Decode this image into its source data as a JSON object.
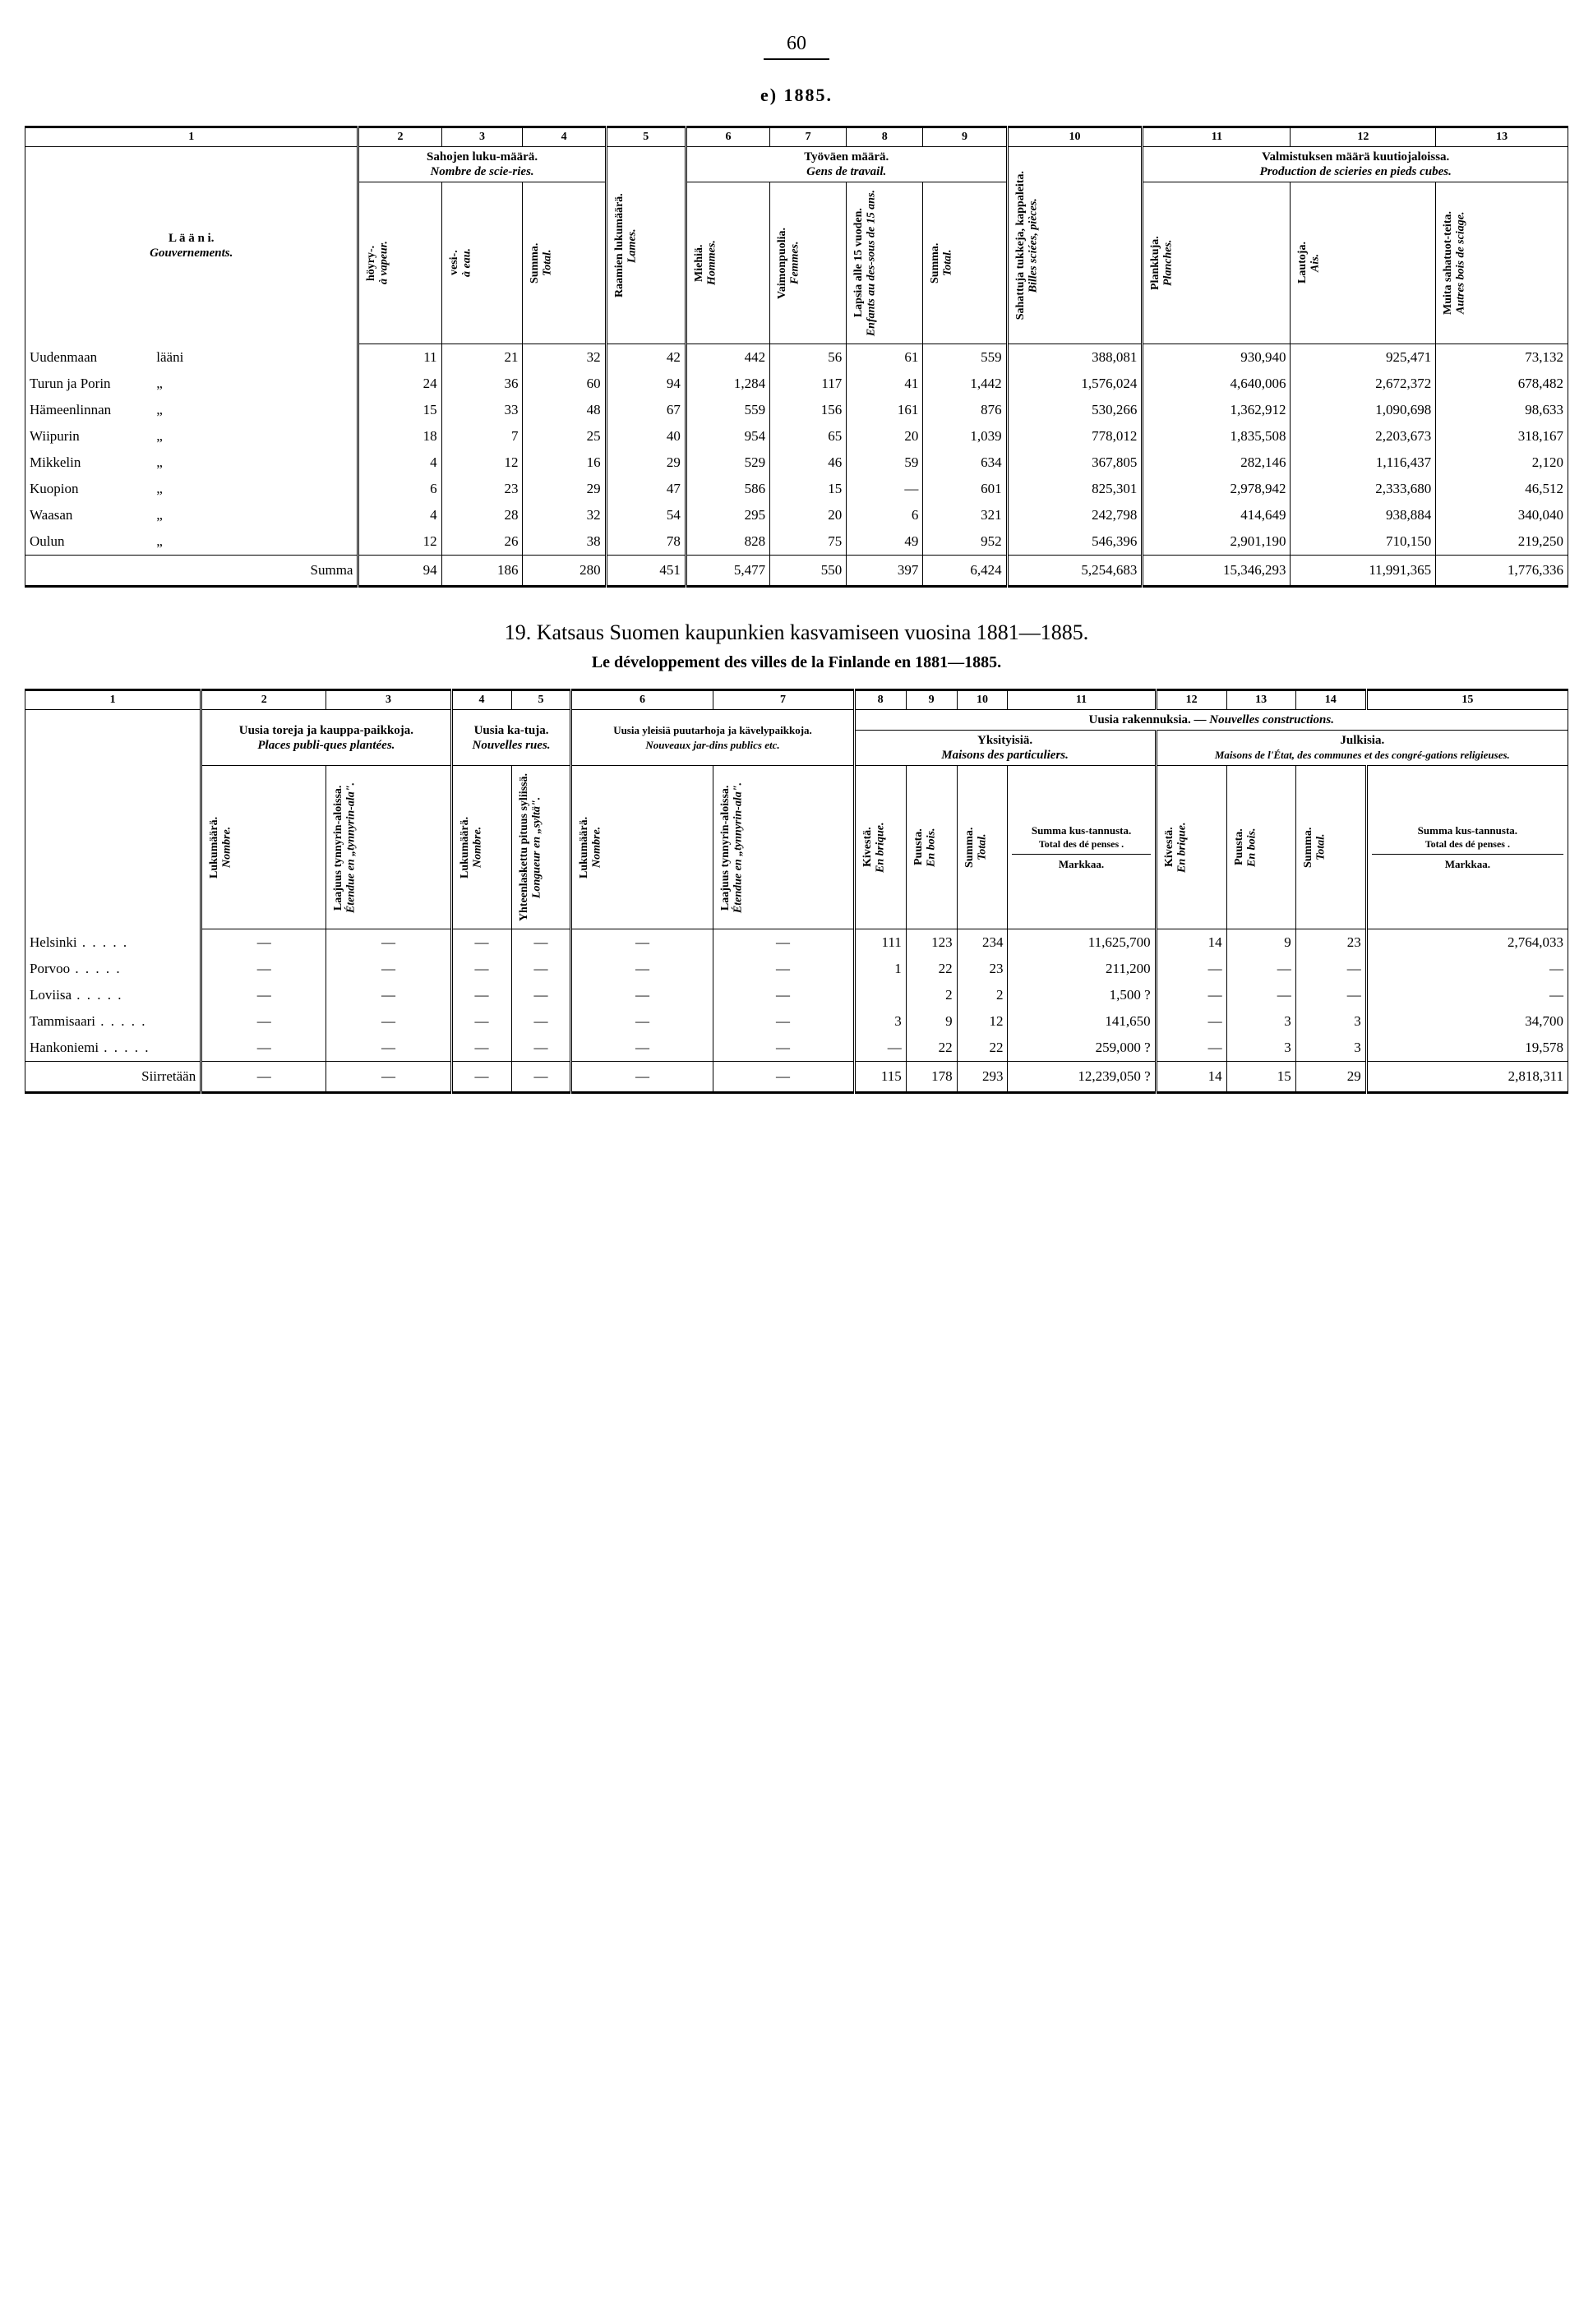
{
  "page_number": "60",
  "section_e_label": "e)  1885.",
  "table1": {
    "colnums": [
      "1",
      "2",
      "3",
      "4",
      "5",
      "6",
      "7",
      "8",
      "9",
      "10",
      "11",
      "12",
      "13"
    ],
    "hdr_sahojen": "Sahojen luku-määrä.",
    "hdr_sahojen_fr": "Nombre de scie-ries.",
    "hdr_raamien": "Raamien lukumäärä.",
    "hdr_raamien_fr": "Lames.",
    "hdr_tyovaen": "Työväen määrä.",
    "hdr_tyovaen_fr": "Gens de travail.",
    "hdr_tukkeja": "Sahattuja tukkeja, kappaleita.",
    "hdr_tukkeja_fr": "Billes sciées, pièces.",
    "hdr_valm": "Valmistuksen määrä kuutiojaloissa.",
    "hdr_valm_fr": "Production de scieries en pieds cubes.",
    "hdr_laani": "L ä ä n i.",
    "hdr_laani_fr": "Gouvernements.",
    "sub_hoyry": "höyry-.",
    "sub_hoyry_fr": "à vapeur.",
    "sub_vesi": "vesi-.",
    "sub_vesi_fr": "à eau.",
    "sub_summa": "Summa.",
    "sub_total": "Total.",
    "sub_miehia": "Miehiä.",
    "sub_miehia_fr": "Hommes.",
    "sub_vaimo": "Vaimonpuolia.",
    "sub_vaimo_fr": "Femmes.",
    "sub_lapsia": "Lapsia alle 15 vuoden.",
    "sub_lapsia_fr": "Enfants au des-sous de 15 ans.",
    "sub_plank": "Plankkuja.",
    "sub_plank_fr": "Planches.",
    "sub_lautoja": "Lautoja.",
    "sub_lautoja_fr": "Ais.",
    "sub_muita": "Muita sahatuot-teita.",
    "sub_muita_fr": "Autres bois de sciage.",
    "rows": [
      {
        "name": "Uudenmaan",
        "suffix": "lääni",
        "c2": "11",
        "c3": "21",
        "c4": "32",
        "c5": "42",
        "c6": "442",
        "c7": "56",
        "c8": "61",
        "c9": "559",
        "c10": "388,081",
        "c11": "930,940",
        "c12": "925,471",
        "c13": "73,132"
      },
      {
        "name": "Turun ja Porin",
        "suffix": "„",
        "c2": "24",
        "c3": "36",
        "c4": "60",
        "c5": "94",
        "c6": "1,284",
        "c7": "117",
        "c8": "41",
        "c9": "1,442",
        "c10": "1,576,024",
        "c11": "4,640,006",
        "c12": "2,672,372",
        "c13": "678,482"
      },
      {
        "name": "Hämeenlinnan",
        "suffix": "„",
        "c2": "15",
        "c3": "33",
        "c4": "48",
        "c5": "67",
        "c6": "559",
        "c7": "156",
        "c8": "161",
        "c9": "876",
        "c10": "530,266",
        "c11": "1,362,912",
        "c12": "1,090,698",
        "c13": "98,633"
      },
      {
        "name": "Wiipurin",
        "suffix": "„",
        "c2": "18",
        "c3": "7",
        "c4": "25",
        "c5": "40",
        "c6": "954",
        "c7": "65",
        "c8": "20",
        "c9": "1,039",
        "c10": "778,012",
        "c11": "1,835,508",
        "c12": "2,203,673",
        "c13": "318,167"
      },
      {
        "name": "Mikkelin",
        "suffix": "„",
        "c2": "4",
        "c3": "12",
        "c4": "16",
        "c5": "29",
        "c6": "529",
        "c7": "46",
        "c8": "59",
        "c9": "634",
        "c10": "367,805",
        "c11": "282,146",
        "c12": "1,116,437",
        "c13": "2,120"
      },
      {
        "name": "Kuopion",
        "suffix": "„",
        "c2": "6",
        "c3": "23",
        "c4": "29",
        "c5": "47",
        "c6": "586",
        "c7": "15",
        "c8": "—",
        "c9": "601",
        "c10": "825,301",
        "c11": "2,978,942",
        "c12": "2,333,680",
        "c13": "46,512"
      },
      {
        "name": "Waasan",
        "suffix": "„",
        "c2": "4",
        "c3": "28",
        "c4": "32",
        "c5": "54",
        "c6": "295",
        "c7": "20",
        "c8": "6",
        "c9": "321",
        "c10": "242,798",
        "c11": "414,649",
        "c12": "938,884",
        "c13": "340,040"
      },
      {
        "name": "Oulun",
        "suffix": "„",
        "c2": "12",
        "c3": "26",
        "c4": "38",
        "c5": "78",
        "c6": "828",
        "c7": "75",
        "c8": "49",
        "c9": "952",
        "c10": "546,396",
        "c11": "2,901,190",
        "c12": "710,150",
        "c13": "219,250"
      }
    ],
    "sum_label": "Summa",
    "sum": {
      "c2": "94",
      "c3": "186",
      "c4": "280",
      "c5": "451",
      "c6": "5,477",
      "c7": "550",
      "c8": "397",
      "c9": "6,424",
      "c10": "5,254,683",
      "c11": "15,346,293",
      "c12": "11,991,365",
      "c13": "1,776,336"
    }
  },
  "section19_title": "19.   Katsaus Suomen kaupunkien kasvamiseen vuosina 1881—1885.",
  "section19_sub": "Le développement des villes de la Finlande en 1881—1885.",
  "table2": {
    "colnums": [
      "1",
      "2",
      "3",
      "4",
      "5",
      "6",
      "7",
      "8",
      "9",
      "10",
      "11",
      "12",
      "13",
      "14",
      "15"
    ],
    "hdr_toreja": "Uusia toreja ja kauppa-paikkoja.",
    "hdr_toreja_fr": "Places publi-ques plantées.",
    "hdr_katuja": "Uusia ka-tuja.",
    "hdr_katuja_fr": "Nouvelles rues.",
    "hdr_puut": "Uusia yleisiä puutarhoja ja kävelypaikkoja.",
    "hdr_puut_fr": "Nouveaux jar-dins publics etc.",
    "hdr_rakenn": "Uusia rakennuksia. — ",
    "hdr_rakenn_fr": "Nouvelles constructions.",
    "hdr_yks": "Yksityisiä.",
    "hdr_yks_fr": "Maisons des particuliers.",
    "hdr_julk": "Julkisia.",
    "hdr_julk_fr": "Maisons de l'État, des communes et des congré-gations religieuses.",
    "sub_luku": "Lukumäärä.",
    "sub_nombre": "Nombre.",
    "sub_laaj": "Laajuus tynnyrin-aloissa.",
    "sub_laaj_fr": "Étendue en „tynnyrin-ala\".",
    "sub_pituus": "Yhteenlaskettu pituus syliissä.",
    "sub_pituus_fr": "Longueur en „syltä\".",
    "sub_kivesta": "Kivestä.",
    "sub_kivesta_fr": "En brique.",
    "sub_puusta": "Puusta.",
    "sub_puusta_fr": "En bois.",
    "sub_summa": "Summa.",
    "sub_total": "Total.",
    "sub_kust": "Summa kus-tannusta.",
    "sub_kust_fr": "Total des dé penses .",
    "sub_markkaa": "Markkaa.",
    "rows": [
      {
        "name": "Helsinki",
        "c2": "—",
        "c3": "—",
        "c4": "—",
        "c5": "—",
        "c6": "—",
        "c7": "—",
        "c8": "111",
        "c9": "123",
        "c10": "234",
        "c11": "11,625,700",
        "c12": "14",
        "c13": "9",
        "c14": "23",
        "c15": "2,764,033"
      },
      {
        "name": "Porvoo",
        "c2": "—",
        "c3": "—",
        "c4": "—",
        "c5": "—",
        "c6": "—",
        "c7": "—",
        "c8": "1",
        "c9": "22",
        "c10": "23",
        "c11": "211,200",
        "c12": "—",
        "c13": "—",
        "c14": "—",
        "c15": "—"
      },
      {
        "name": "Loviisa",
        "c2": "—",
        "c3": "—",
        "c4": "—",
        "c5": "—",
        "c6": "—",
        "c7": "—",
        "c8": "",
        "c9": "2",
        "c10": "2",
        "c11": "1,500 ?",
        "c12": "—",
        "c13": "—",
        "c14": "—",
        "c15": "—"
      },
      {
        "name": "Tammisaari",
        "c2": "—",
        "c3": "—",
        "c4": "—",
        "c5": "—",
        "c6": "—",
        "c7": "—",
        "c8": "3",
        "c9": "9",
        "c10": "12",
        "c11": "141,650",
        "c12": "—",
        "c13": "3",
        "c14": "3",
        "c15": "34,700"
      },
      {
        "name": "Hankoniemi",
        "c2": "—",
        "c3": "—",
        "c4": "—",
        "c5": "—",
        "c6": "—",
        "c7": "—",
        "c8": "—",
        "c9": "22",
        "c10": "22",
        "c11": "259,000 ?",
        "c12": "—",
        "c13": "3",
        "c14": "3",
        "c15": "19,578"
      }
    ],
    "sum_label": "Siirretään",
    "sum": {
      "c2": "—",
      "c3": "—",
      "c4": "—",
      "c5": "—",
      "c6": "—",
      "c7": "—",
      "c8": "115",
      "c9": "178",
      "c10": "293",
      "c11": "12,239,050 ?",
      "c12": "14",
      "c13": "15",
      "c14": "29",
      "c15": "2,818,311"
    }
  }
}
